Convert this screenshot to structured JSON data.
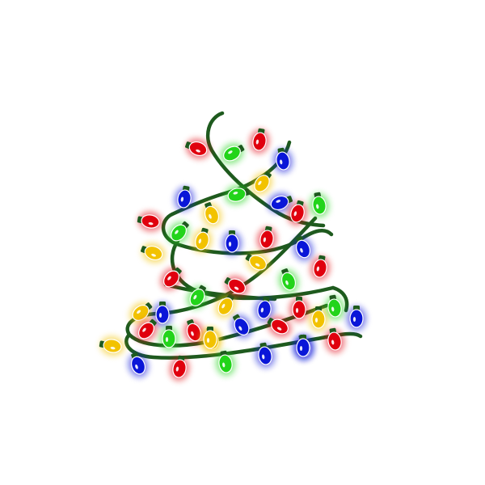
{
  "image": {
    "subject": "christmas-lights-tree",
    "background": "#ffffff",
    "wire_color": "#1e5a1e",
    "bulb_colors": {
      "red": "#e0000e",
      "green": "#22d41a",
      "blue": "#0a16d8",
      "yellow": "#f2c200"
    },
    "bulbs": [
      {
        "color": "red"
      },
      {
        "color": "green"
      },
      {
        "color": "red"
      },
      {
        "color": "blue"
      },
      {
        "color": "blue"
      },
      {
        "color": "green"
      },
      {
        "color": "yellow"
      },
      {
        "color": "blue"
      },
      {
        "color": "yellow"
      },
      {
        "color": "red"
      },
      {
        "color": "green"
      },
      {
        "color": "red"
      },
      {
        "color": "green"
      },
      {
        "color": "yellow"
      },
      {
        "color": "blue"
      },
      {
        "color": "red"
      },
      {
        "color": "blue"
      },
      {
        "color": "yellow"
      },
      {
        "color": "yellow"
      },
      {
        "color": "red"
      },
      {
        "color": "red"
      },
      {
        "color": "green"
      },
      {
        "color": "green"
      },
      {
        "color": "yellow"
      },
      {
        "color": "blue"
      },
      {
        "color": "red"
      },
      {
        "color": "yellow"
      },
      {
        "color": "blue"
      },
      {
        "color": "red"
      },
      {
        "color": "green"
      },
      {
        "color": "green"
      },
      {
        "color": "blue"
      },
      {
        "color": "red"
      },
      {
        "color": "blue"
      },
      {
        "color": "yellow"
      },
      {
        "color": "red"
      },
      {
        "color": "yellow"
      },
      {
        "color": "red"
      },
      {
        "color": "yellow"
      },
      {
        "color": "blue"
      },
      {
        "color": "blue"
      },
      {
        "color": "red"
      },
      {
        "color": "blue"
      },
      {
        "color": "red"
      },
      {
        "color": "green"
      },
      {
        "color": "yellow"
      },
      {
        "color": "blue"
      }
    ]
  }
}
